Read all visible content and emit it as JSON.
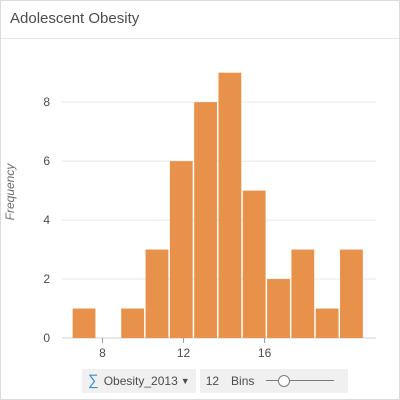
{
  "card": {
    "title": "Adolescent Obesity"
  },
  "chart_data": {
    "type": "bar",
    "subtype": "histogram",
    "ylabel": "Frequency",
    "xlabel": "",
    "bin_edges": [
      6.5,
      7.7,
      8.9,
      10.1,
      11.3,
      12.5,
      13.7,
      14.9,
      16.1,
      17.3,
      18.5
    ],
    "bins": [
      {
        "start": 6.5,
        "end": 7.7,
        "value": 1
      },
      {
        "start": 7.7,
        "end": 8.9,
        "value": 0
      },
      {
        "start": 8.9,
        "end": 10.1,
        "value": 1
      },
      {
        "start": 10.1,
        "end": 11.3,
        "value": 3
      },
      {
        "start": 11.3,
        "end": 12.5,
        "value": 6
      },
      {
        "start": 12.5,
        "end": 13.7,
        "value": 8
      },
      {
        "start": 13.7,
        "end": 14.9,
        "value": 9
      },
      {
        "start": 14.9,
        "end": 16.1,
        "value": 5
      },
      {
        "start": 16.1,
        "end": 17.3,
        "value": 2
      },
      {
        "start": 17.3,
        "end": 18.5,
        "value": 3
      }
    ],
    "extra_bins": [
      {
        "start": 18.5,
        "end": 19.7,
        "value": 1
      },
      {
        "start": 19.7,
        "end": 20.9,
        "value": 3
      }
    ],
    "xlim": [
      6.0,
      21.5
    ],
    "ylim": [
      0,
      9.6
    ],
    "x_ticks": [
      {
        "value": 8,
        "label": "8"
      },
      {
        "value": 12,
        "label": "12"
      },
      {
        "value": 16,
        "label": "16"
      }
    ],
    "y_ticks": [
      {
        "value": 0,
        "label": "0"
      },
      {
        "value": 2,
        "label": "2"
      },
      {
        "value": 4,
        "label": "4"
      },
      {
        "value": 6,
        "label": "6"
      },
      {
        "value": 8,
        "label": "8"
      }
    ],
    "grid": true,
    "bar_color": "#e8914b",
    "grid_color": "#e8e8e8"
  },
  "footer": {
    "field_icon": "sigma-icon",
    "field_label": "Obesity_2013",
    "bins_count": "12",
    "bins_label": "Bins",
    "slider_fraction": 0.2
  }
}
